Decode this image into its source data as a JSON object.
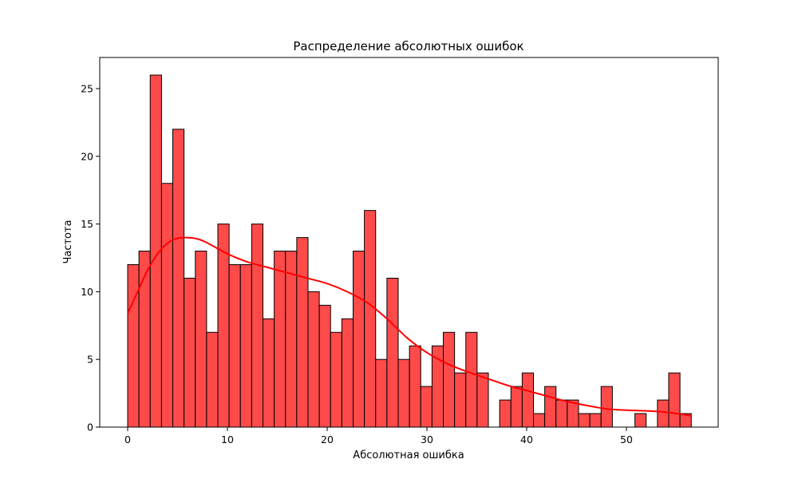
{
  "chart_data": {
    "type": "bar",
    "title": "Распределение абсолютных ошибок",
    "xlabel": "Абсолютная ошибка",
    "ylabel": "Частота",
    "xlim": [
      -2.8,
      59.2
    ],
    "ylim": [
      0,
      27.3
    ],
    "xticks": [
      0,
      10,
      20,
      30,
      40,
      50
    ],
    "yticks": [
      0,
      5,
      10,
      15,
      20,
      25
    ],
    "bin_start": 0,
    "bin_width": 1.13,
    "values": [
      12,
      13,
      26,
      18,
      22,
      11,
      13,
      7,
      15,
      12,
      12,
      15,
      8,
      13,
      13,
      14,
      10,
      9,
      7,
      8,
      13,
      16,
      5,
      11,
      5,
      6,
      3,
      6,
      7,
      4,
      7,
      4,
      0,
      2,
      3,
      4,
      1,
      3,
      2,
      2,
      1,
      1,
      3,
      0,
      0,
      1,
      0,
      2,
      4,
      1
    ],
    "bar_color": "#ff4a4a",
    "bar_edge_color": "#000000",
    "kde": {
      "color": "#ff0000",
      "x": [
        0,
        1,
        2,
        3,
        4,
        5,
        6,
        7,
        8,
        10,
        12,
        14,
        16,
        18,
        20,
        22,
        24,
        26,
        28,
        30,
        32,
        34,
        36,
        38,
        40,
        42,
        44,
        46,
        48,
        50,
        52,
        54,
        56.5
      ],
      "y": [
        8.4,
        10.0,
        11.6,
        12.8,
        13.6,
        13.95,
        14.0,
        13.9,
        13.6,
        12.8,
        12.2,
        11.8,
        11.4,
        11.0,
        10.6,
        10.0,
        9.2,
        8.0,
        6.6,
        5.5,
        4.7,
        4.1,
        3.6,
        3.1,
        2.7,
        2.3,
        1.9,
        1.6,
        1.35,
        1.25,
        1.2,
        1.1,
        0.85
      ]
    }
  }
}
